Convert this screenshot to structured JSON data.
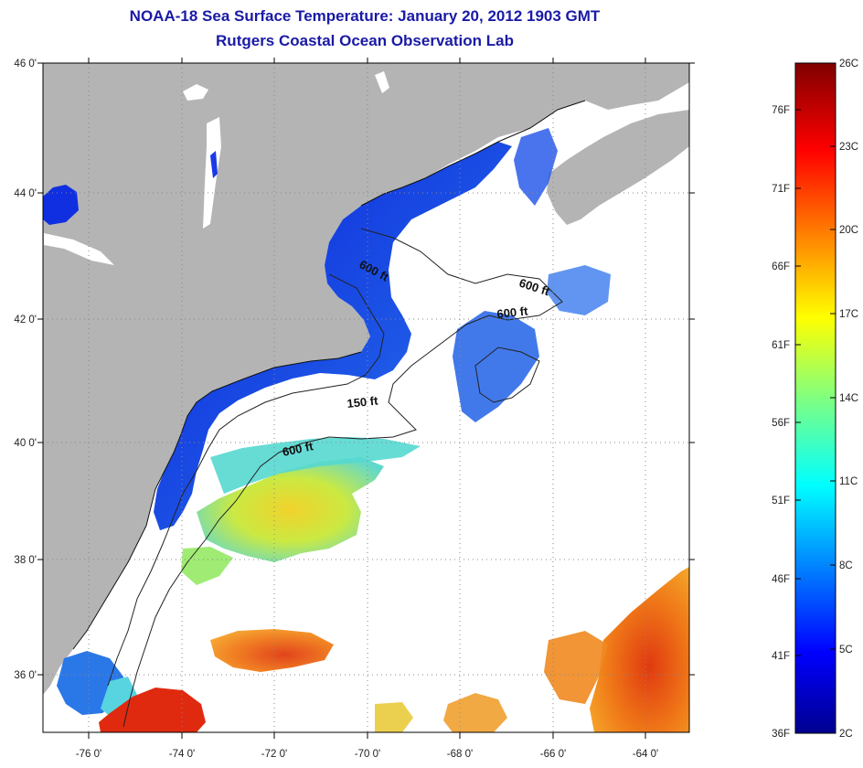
{
  "header": {
    "title": "NOAA-18 Sea Surface Temperature:  January 20, 2012 1903 GMT",
    "subtitle": "Rutgers Coastal Ocean Observation Lab"
  },
  "map": {
    "lat_ticks": [
      "46 0'",
      "44 0'",
      "42 0'",
      "40 0'",
      "38 0'",
      "36 0'"
    ],
    "lon_ticks": [
      "-76 0'",
      "-74 0'",
      "-72 0'",
      "-70 0'",
      "-68 0'",
      "-66 0'",
      "-64 0'"
    ],
    "contour_labels": [
      "600 ft",
      "600 ft",
      "600 ft",
      "150 ft",
      "600 ft"
    ],
    "colors": {
      "land": "#b4b4b4",
      "cloud": "#ffffff",
      "contour": "#222222"
    }
  },
  "colorbar": {
    "fahrenheit_labels": [
      "36F",
      "41F",
      "46F",
      "51F",
      "56F",
      "61F",
      "66F",
      "71F",
      "76F"
    ],
    "celsius_labels": [
      "26C",
      "23C",
      "20C",
      "17C",
      "14C",
      "11C",
      "8C",
      "5C",
      "2C"
    ],
    "range_f": [
      36,
      79
    ],
    "range_c": [
      2,
      26
    ]
  }
}
